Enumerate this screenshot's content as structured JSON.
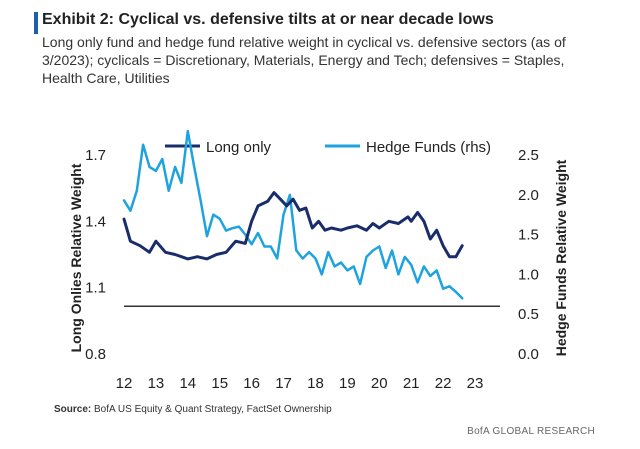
{
  "header": {
    "title": "Exhibit 2: Cyclical vs. defensive tilts at or near decade lows",
    "subtitle": "Long only fund and hedge fund relative weight in cyclical vs. defensive sectors (as of 3/2023); cyclicals = Discretionary, Materials, Energy and Tech; defensives = Staples, Health Care, Utilities"
  },
  "footer": {
    "source_label": "Source:",
    "source_text": "BofA US Equity & Quant Strategy, FactSet Ownership",
    "brand": "BofA GLOBAL RESEARCH"
  },
  "colors": {
    "long_only": "#1a2d6b",
    "hedge_funds": "#1ea3de",
    "accent": "#1f5fa8",
    "reference_line": "#333333"
  },
  "chart_data": {
    "type": "line",
    "title": "",
    "xlabel": "",
    "ylabel": "Long Onlies Relative Weight",
    "y2label": "Hedge Funds Relative Weight",
    "ylim": [
      0.8,
      1.7
    ],
    "y2lim": [
      0.0,
      2.5
    ],
    "xlim": [
      12,
      23
    ],
    "x_ticks": [
      "12",
      "13",
      "14",
      "15",
      "16",
      "17",
      "18",
      "19",
      "20",
      "21",
      "22",
      "23"
    ],
    "y_ticks": [
      "0.8",
      "1.1",
      "1.4",
      "1.7"
    ],
    "y2_ticks": [
      "0.0",
      "0.5",
      "1.0",
      "1.5",
      "2.0",
      "2.5"
    ],
    "reference_line": {
      "axis": "y2",
      "value": 0.6
    },
    "legend_position": "top",
    "series": [
      {
        "name": "Long only",
        "axis": "y",
        "x": [
          12.0,
          12.2,
          12.5,
          12.8,
          13.0,
          13.3,
          13.6,
          14.0,
          14.3,
          14.6,
          14.9,
          15.2,
          15.5,
          15.8,
          16.0,
          16.2,
          16.5,
          16.7,
          16.9,
          17.1,
          17.3,
          17.5,
          17.7,
          17.9,
          18.1,
          18.3,
          18.5,
          18.8,
          19.0,
          19.3,
          19.6,
          19.8,
          20.0,
          20.3,
          20.6,
          20.9,
          21.0,
          21.2,
          21.4,
          21.6,
          21.8,
          22.0,
          22.2,
          22.4,
          22.6
        ],
        "values": [
          1.41,
          1.31,
          1.29,
          1.26,
          1.31,
          1.26,
          1.25,
          1.23,
          1.24,
          1.23,
          1.25,
          1.26,
          1.31,
          1.3,
          1.4,
          1.47,
          1.49,
          1.53,
          1.5,
          1.47,
          1.5,
          1.45,
          1.46,
          1.37,
          1.4,
          1.36,
          1.37,
          1.36,
          1.37,
          1.38,
          1.36,
          1.39,
          1.37,
          1.4,
          1.39,
          1.42,
          1.4,
          1.44,
          1.4,
          1.32,
          1.36,
          1.29,
          1.24,
          1.24,
          1.29
        ]
      },
      {
        "name": "Hedge Funds (rhs)",
        "axis": "y2",
        "x": [
          12.0,
          12.2,
          12.4,
          12.6,
          12.8,
          13.0,
          13.2,
          13.4,
          13.6,
          13.8,
          14.0,
          14.2,
          14.4,
          14.6,
          14.8,
          15.0,
          15.2,
          15.4,
          15.6,
          15.8,
          16.0,
          16.2,
          16.4,
          16.6,
          16.8,
          17.0,
          17.2,
          17.4,
          17.6,
          17.8,
          18.0,
          18.2,
          18.4,
          18.6,
          18.8,
          19.0,
          19.2,
          19.4,
          19.6,
          19.8,
          20.0,
          20.2,
          20.4,
          20.6,
          20.8,
          21.0,
          21.2,
          21.4,
          21.6,
          21.8,
          22.0,
          22.2,
          22.4,
          22.6
        ],
        "values": [
          1.93,
          1.8,
          2.05,
          2.63,
          2.35,
          2.3,
          2.45,
          2.05,
          2.35,
          2.15,
          2.8,
          2.35,
          1.93,
          1.48,
          1.75,
          1.7,
          1.55,
          1.58,
          1.6,
          1.5,
          1.38,
          1.52,
          1.35,
          1.35,
          1.2,
          1.75,
          2.0,
          1.3,
          1.2,
          1.28,
          1.2,
          1.0,
          1.28,
          1.1,
          1.15,
          1.05,
          1.1,
          0.88,
          1.22,
          1.3,
          1.35,
          1.08,
          1.3,
          1.0,
          1.22,
          1.12,
          0.9,
          1.1,
          0.98,
          1.05,
          0.82,
          0.85,
          0.78,
          0.7
        ]
      }
    ]
  }
}
